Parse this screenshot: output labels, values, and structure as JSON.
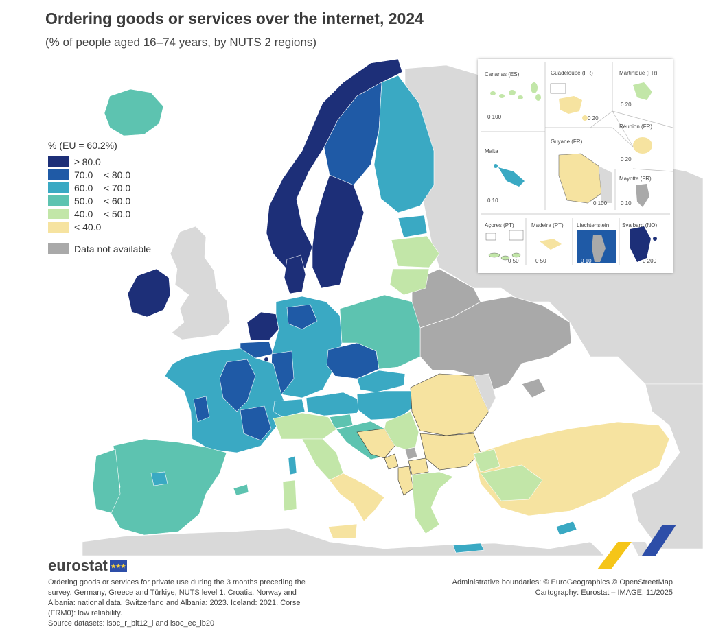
{
  "title": "Ordering goods or services over the internet, 2024",
  "subtitle": "(% of people aged 16–74 years, by NUTS 2 regions)",
  "legend": {
    "title": "% (EU = 60.2%)",
    "classes": [
      {
        "label": "≥ 80.0",
        "color": "#1d2f78"
      },
      {
        "label": "70.0 – < 80.0",
        "color": "#1f5aa6"
      },
      {
        "label": "60.0 – < 70.0",
        "color": "#3aa9c3"
      },
      {
        "label": "50.0 – < 60.0",
        "color": "#5dc3b0"
      },
      {
        "label": "40.0 – < 50.0",
        "color": "#c2e6a8"
      },
      {
        "label": "< 40.0",
        "color": "#f6e3a0"
      }
    ],
    "not_available": {
      "label": "Data not available",
      "color": "#a9a9a9"
    }
  },
  "insets": [
    {
      "name": "Canarias (ES)",
      "scale": "0  100"
    },
    {
      "name": "Guadeloupe (FR)",
      "scale": "0  20"
    },
    {
      "name": "Martinique (FR)",
      "scale": "0  20"
    },
    {
      "name": "Réunion (FR)",
      "scale": "0  20"
    },
    {
      "name": "Malta",
      "scale": "0  10"
    },
    {
      "name": "Guyane (FR)",
      "scale": "0  100"
    },
    {
      "name": "Mayotte (FR)",
      "scale": "0  10"
    },
    {
      "name": "Açores (PT)",
      "scale": "0  50"
    },
    {
      "name": "Madeira (PT)",
      "scale": "0  50"
    },
    {
      "name": "Liechtenstein",
      "scale": "0  10"
    },
    {
      "name": "Svalbard (NO)",
      "scale": "0  200"
    }
  ],
  "logo": {
    "text": "eurostat"
  },
  "note": [
    "Ordering goods or services for private use during the 3 months preceding the",
    "survey. Germany, Greece and Türkiye, NUTS level 1. Croatia, Norway and",
    "Albania: national data. Switzerland and Albania: 2023. Iceland: 2021. Corse",
    "(FRM0): low reliability.",
    "Source datasets: isoc_r_blt12_i and isoc_ec_ib20"
  ],
  "credits": [
    "Administrative boundaries: © EuroGeographics © OpenStreetMap",
    "Cartography: Eurostat – IMAGE, 11/2025"
  ]
}
